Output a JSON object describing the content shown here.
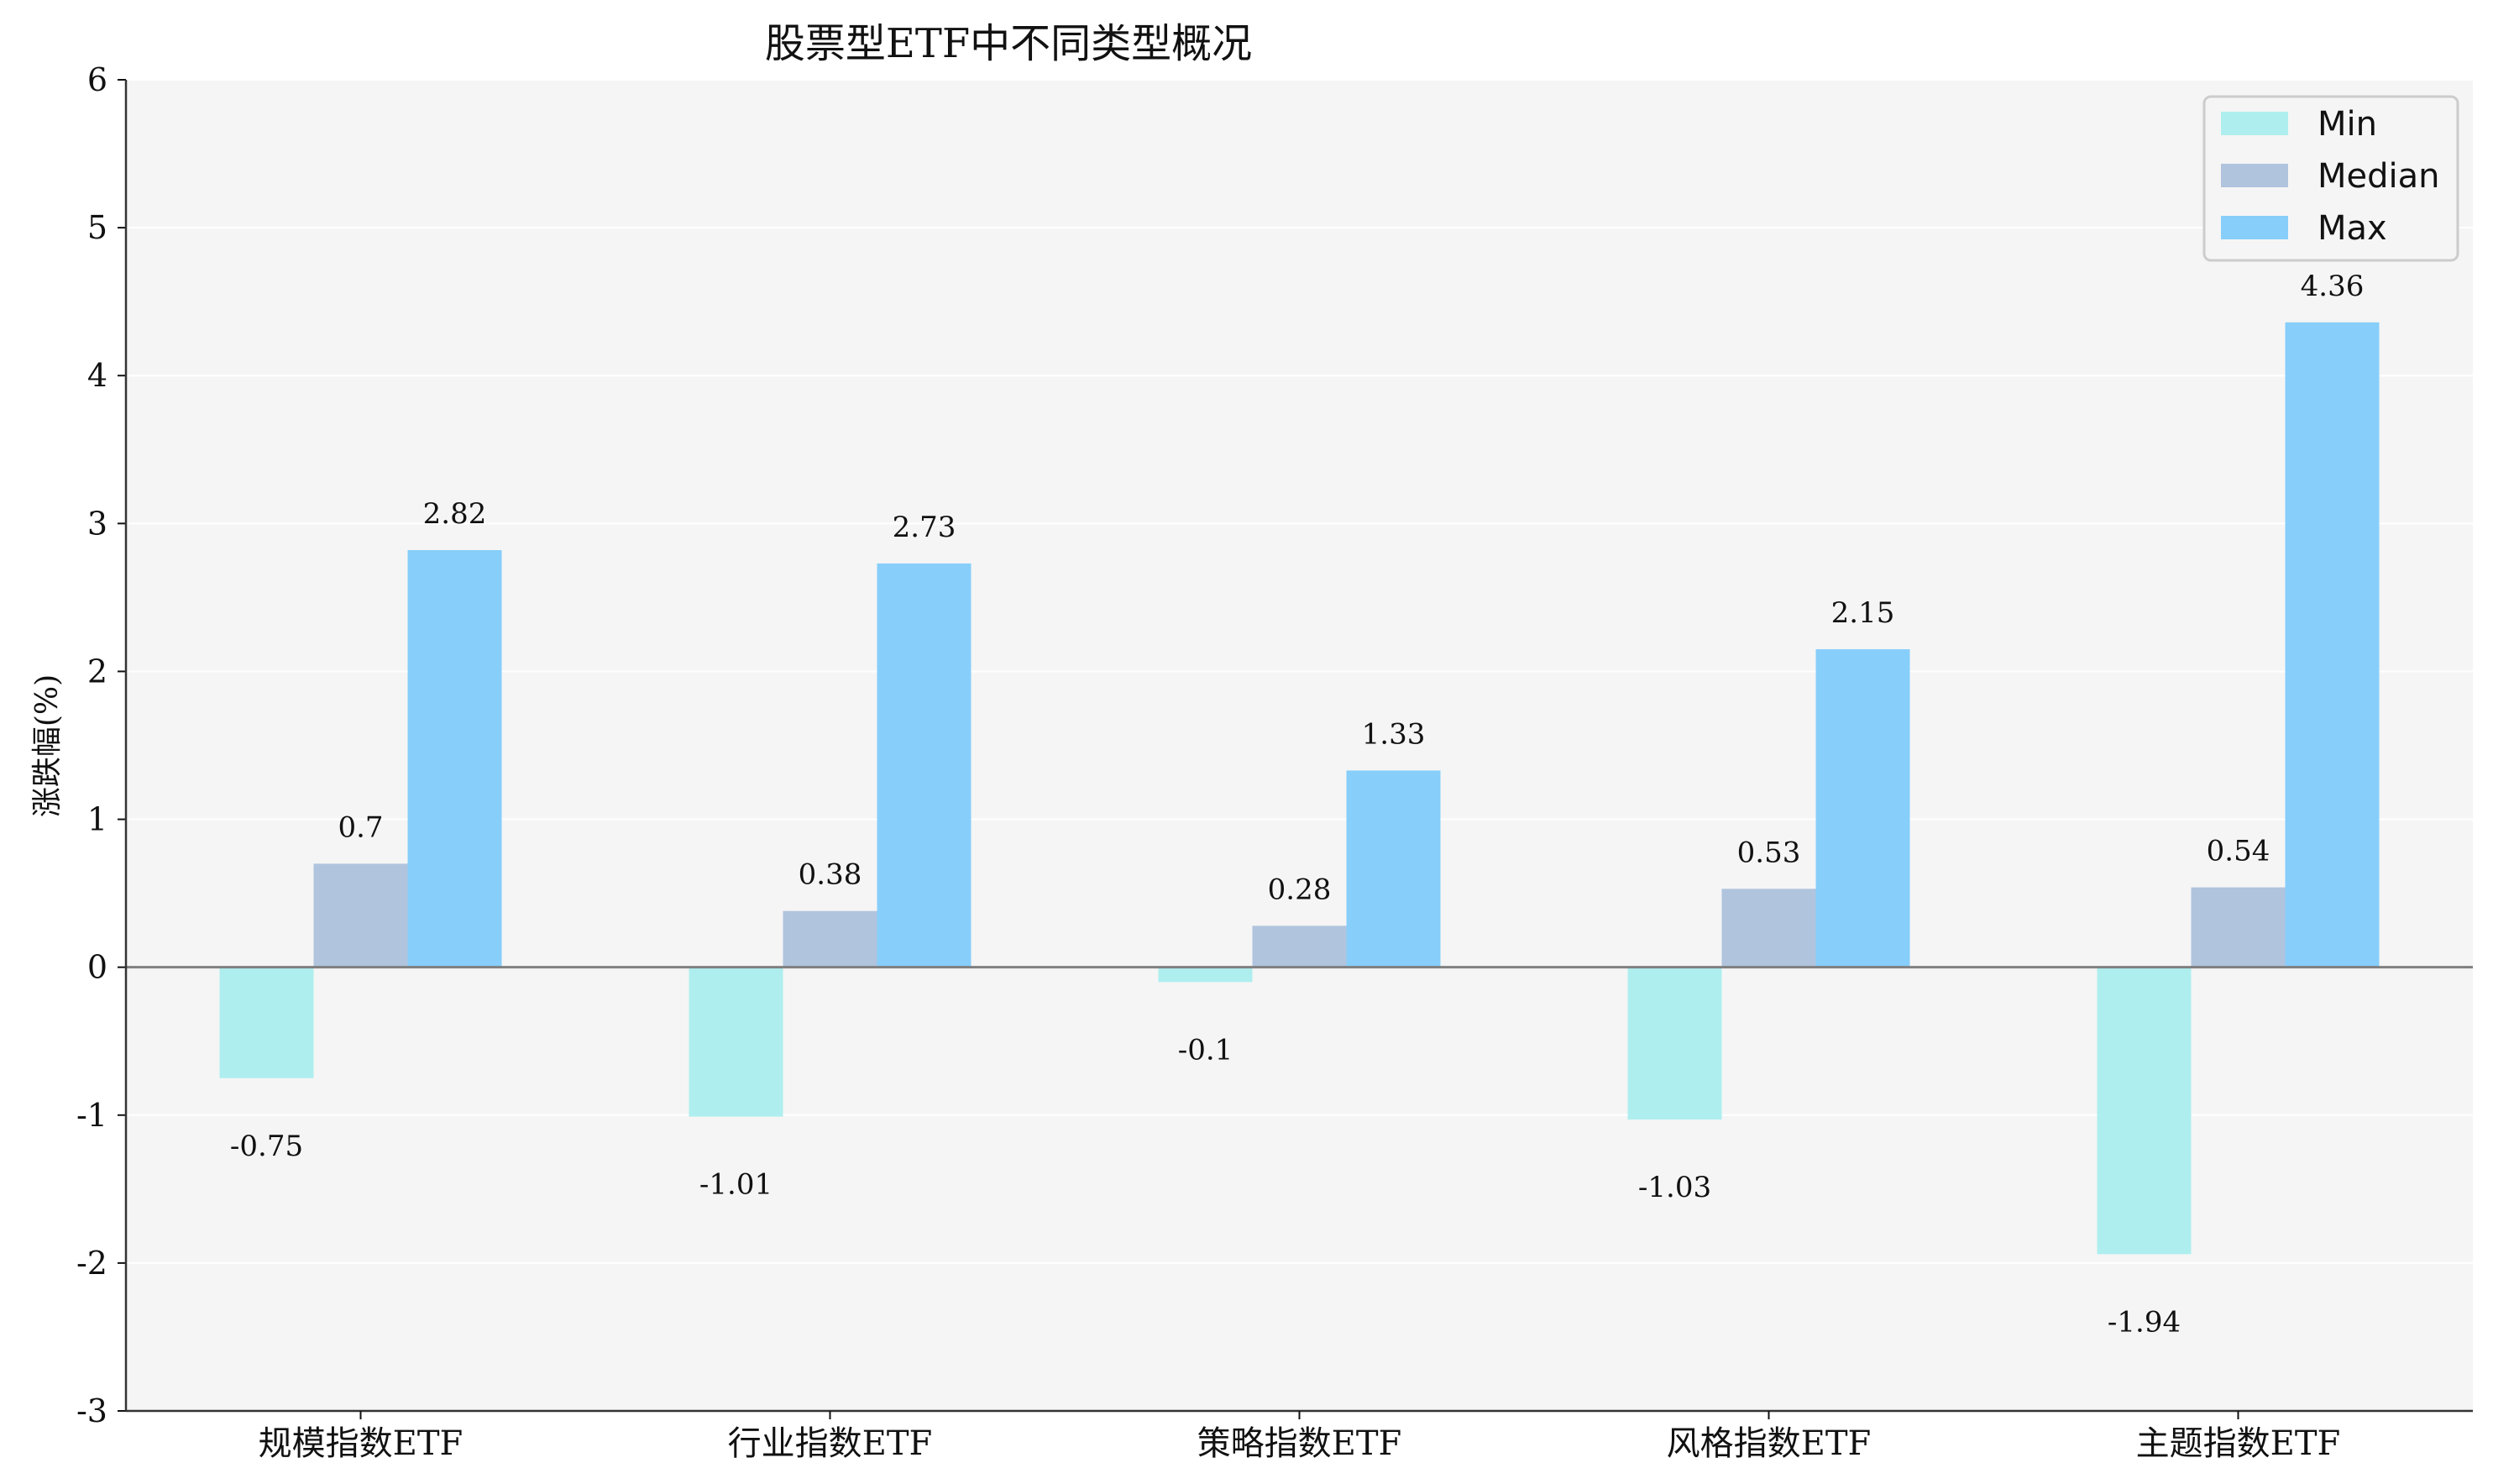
{
  "chart_data": {
    "type": "bar",
    "title": "股票型ETF中不同类型概况",
    "xlabel": "",
    "ylabel": "涨跌幅(%)",
    "ylim": [
      -3,
      6
    ],
    "yticks": [
      "-3",
      "-2",
      "-1",
      "0",
      "1",
      "2",
      "3",
      "4",
      "5",
      "6"
    ],
    "categories": [
      "规模指数ETF",
      "行业指数ETF",
      "策略指数ETF",
      "风格指数ETF",
      "主题指数ETF"
    ],
    "series": [
      {
        "name": "Min",
        "values": [
          -0.75,
          -1.01,
          -0.1,
          -1.03,
          -1.94
        ],
        "labels": [
          "-0.75",
          "-1.01",
          "-0.1",
          "-1.03",
          "-1.94"
        ],
        "color": "#afeeee"
      },
      {
        "name": "Median",
        "values": [
          0.7,
          0.38,
          0.28,
          0.53,
          0.54
        ],
        "labels": [
          "0.7",
          "0.38",
          "0.28",
          "0.53",
          "0.54"
        ],
        "color": "#b0c4de"
      },
      {
        "name": "Max",
        "values": [
          2.82,
          2.73,
          1.33,
          2.15,
          4.36
        ],
        "labels": [
          "2.82",
          "2.73",
          "1.33",
          "2.15",
          "4.36"
        ],
        "color": "#87cefa"
      }
    ],
    "grid": true,
    "legend_position": "top-right",
    "background": "#f5f5f5",
    "zero_line_color": "#808080"
  }
}
